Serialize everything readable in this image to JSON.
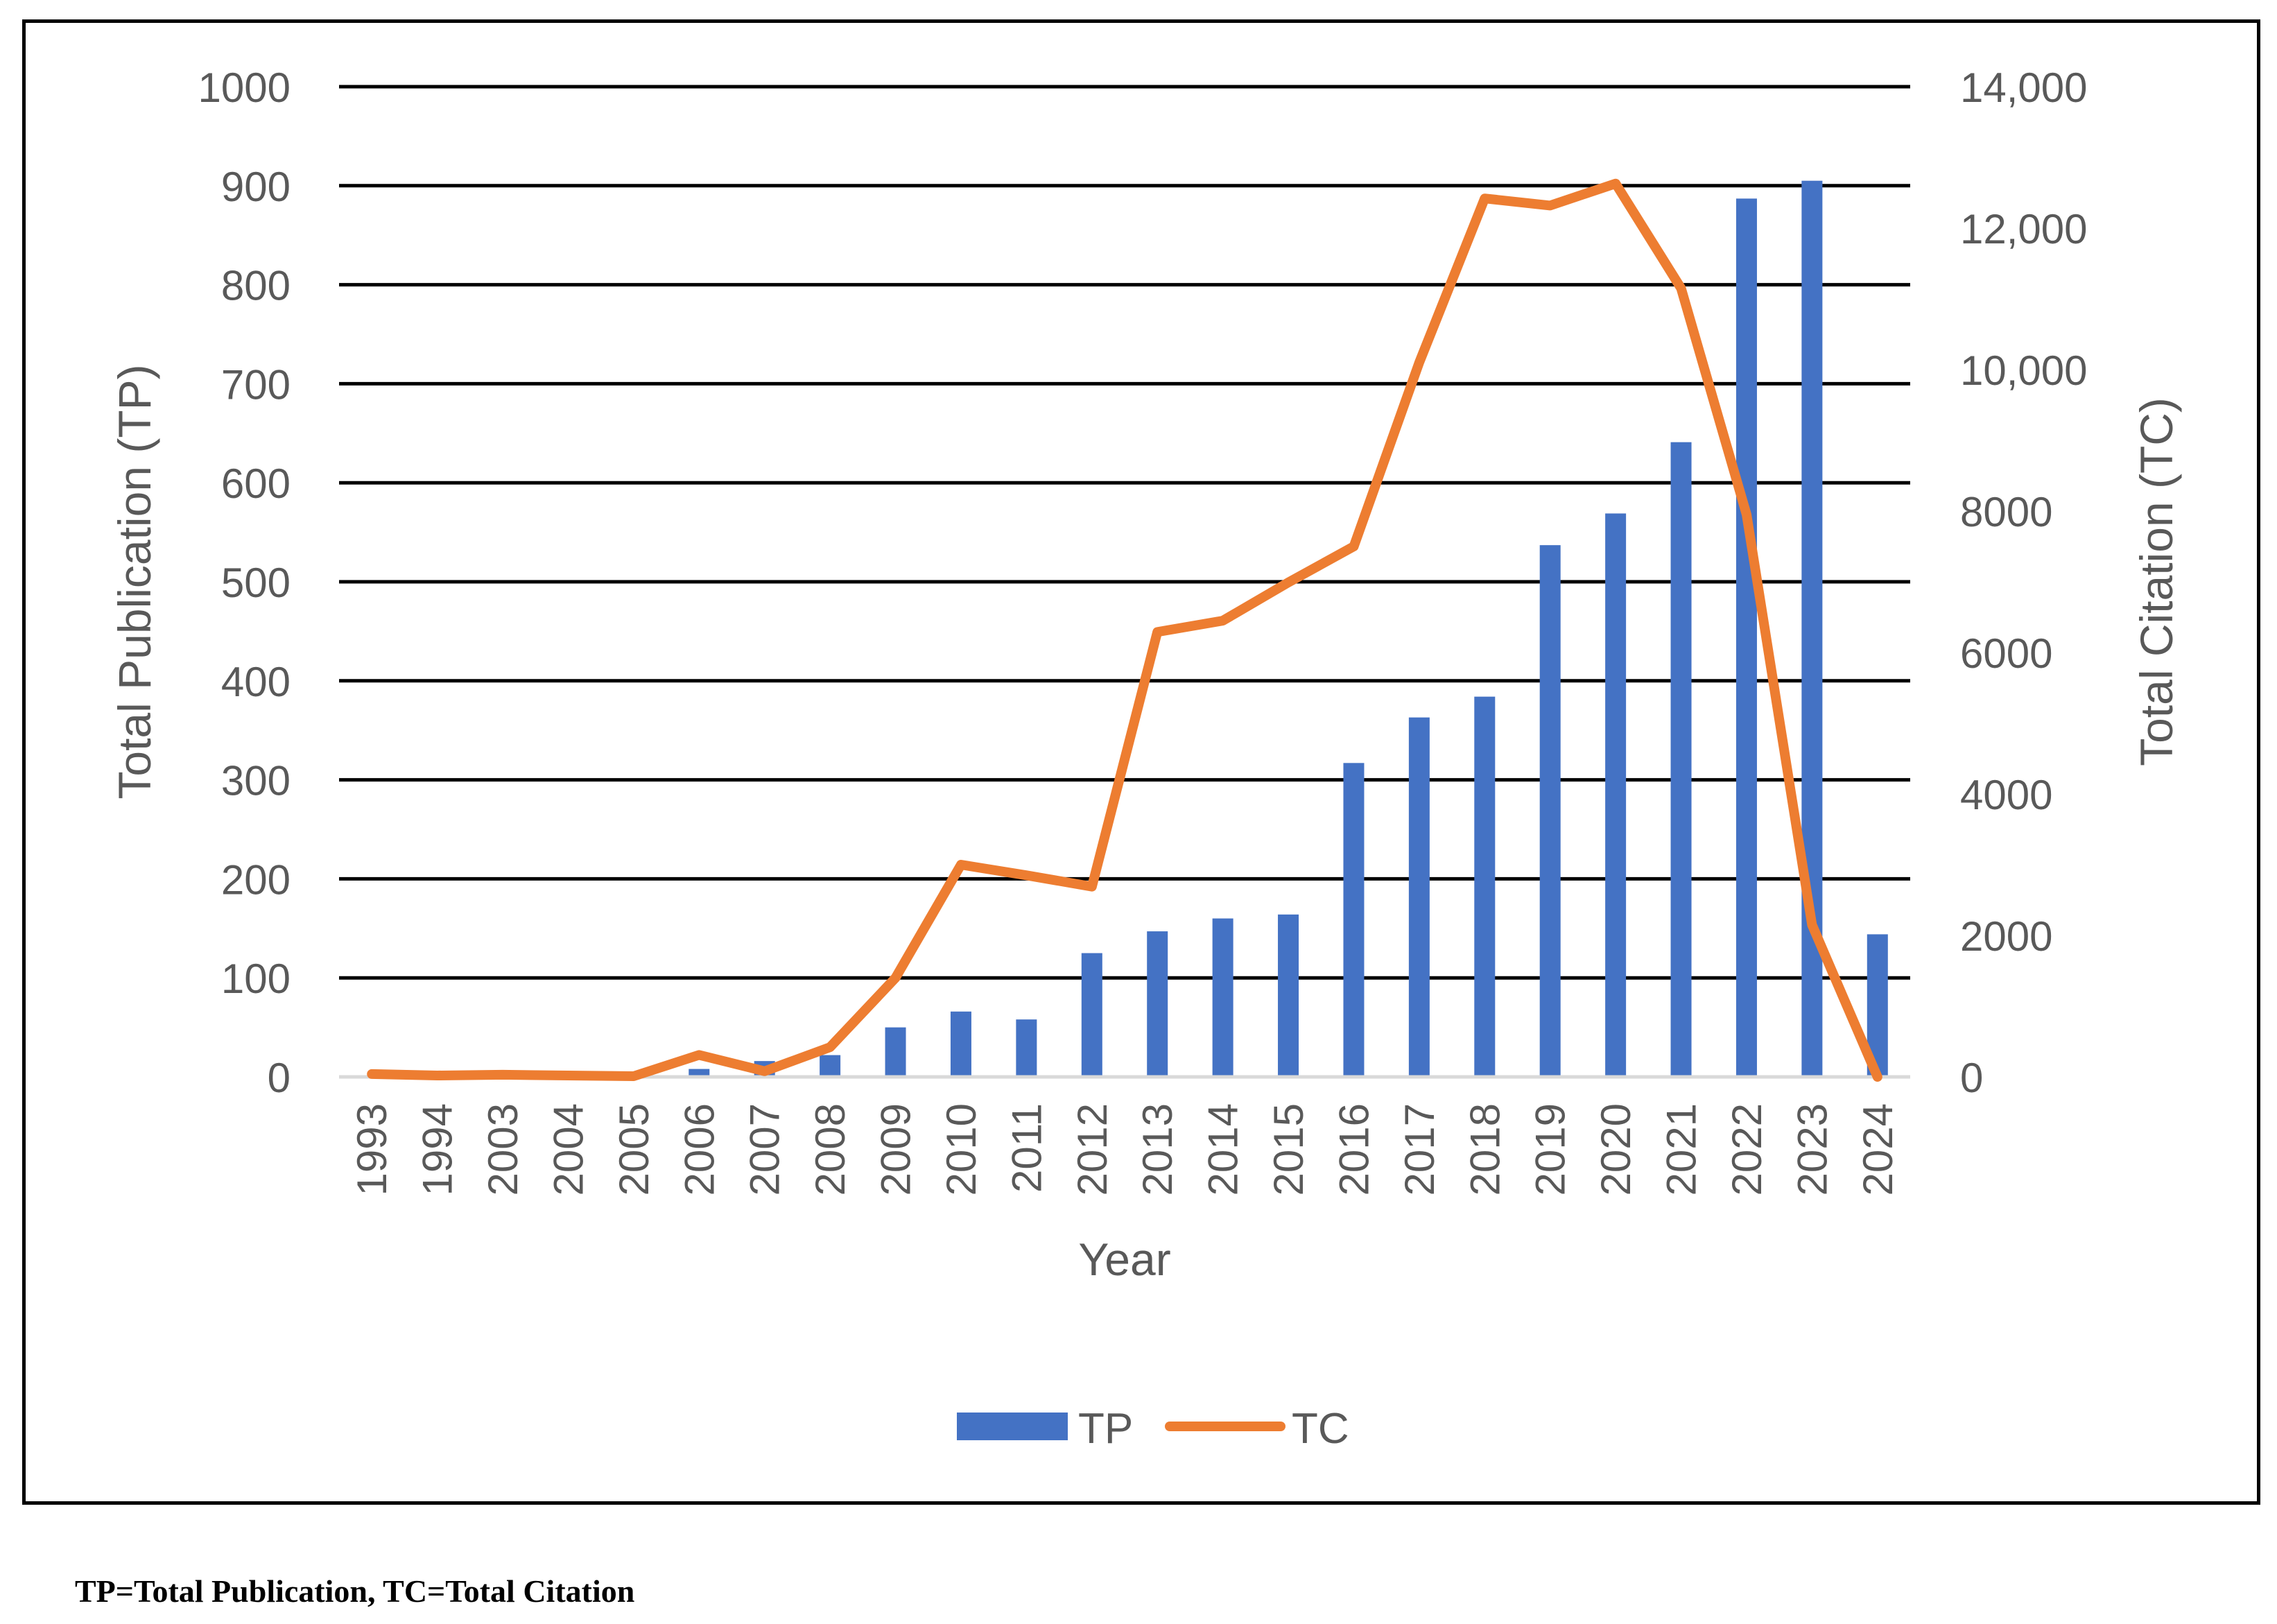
{
  "chart_data": {
    "type": "bar",
    "title": "",
    "xlabel": "Year",
    "ylabel": "Total Publication (TP)",
    "y2label": "Total Citation (TC)",
    "ylim": [
      0,
      1000
    ],
    "y2lim": [
      0,
      14000
    ],
    "categories": [
      "1993",
      "1994",
      "2003",
      "2004",
      "2005",
      "2006",
      "2007",
      "2008",
      "2009",
      "2010",
      "2011",
      "2012",
      "2013",
      "2014",
      "2015",
      "2016",
      "2017",
      "2018",
      "2019",
      "2020",
      "2021",
      "2022",
      "2023",
      "2024"
    ],
    "series": [
      {
        "name": "TP",
        "type": "bar",
        "axis": "left",
        "color": "#4472c4",
        "values": [
          1,
          1,
          1,
          1,
          1,
          8,
          16,
          22,
          50,
          66,
          58,
          125,
          147,
          160,
          164,
          317,
          363,
          384,
          537,
          569,
          641,
          887,
          905,
          144
        ]
      },
      {
        "name": "TC",
        "type": "line",
        "axis": "right",
        "color": "#ed7d31",
        "values": [
          40,
          20,
          30,
          20,
          10,
          310,
          80,
          420,
          1400,
          3000,
          2850,
          2690,
          6290,
          6450,
          6990,
          7500,
          10100,
          12420,
          12320,
          12630,
          11150,
          7950,
          2150,
          0
        ]
      }
    ],
    "y_ticks": [
      "0",
      "100",
      "200",
      "300",
      "400",
      "500",
      "600",
      "700",
      "800",
      "900",
      "1000"
    ],
    "y2_ticks": [
      "0",
      "2000",
      "4000",
      "6000",
      "8000",
      "10,000",
      "12,000",
      "14,000"
    ],
    "legend": [
      "TP",
      "TC"
    ],
    "legend_position": "bottom",
    "grid": true
  },
  "footnote": "TP=Total Publication, TC=Total Citation"
}
